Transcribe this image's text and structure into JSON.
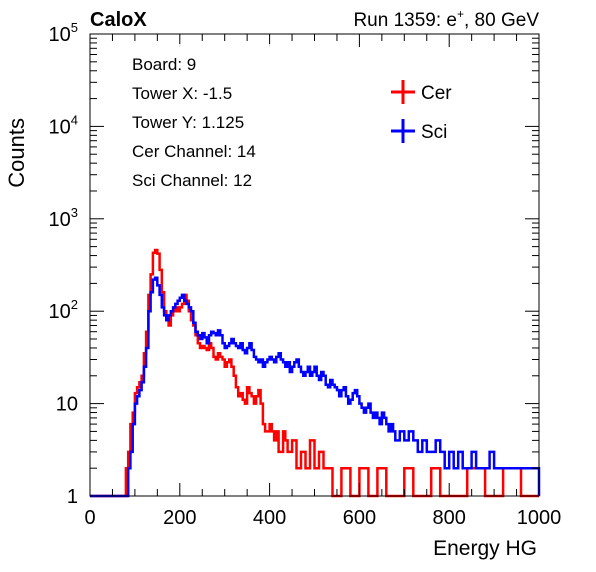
{
  "chart_data": {
    "type": "line",
    "experiment_label": "CaloX",
    "run_label": "Run 1359: e",
    "run_label_sup": "+",
    "run_label_tail": ", 80 GeV",
    "xlabel": "Energy HG",
    "ylabel": "Counts",
    "xlim": [
      0,
      1000
    ],
    "ylim": [
      1,
      100000
    ],
    "y_scale": "log",
    "x_ticks": [
      0,
      200,
      400,
      600,
      800,
      1000
    ],
    "y_ticks": [
      {
        "base": "1",
        "exp": ""
      },
      {
        "base": "10",
        "exp": ""
      },
      {
        "base": "10",
        "exp": "2"
      },
      {
        "base": "10",
        "exp": "3"
      },
      {
        "base": "10",
        "exp": "4"
      },
      {
        "base": "10",
        "exp": "5"
      }
    ],
    "info_lines": [
      "Board: 9",
      "Tower X: -1.5",
      "Tower Y: 1.125",
      "Cer Channel: 14",
      "Sci Channel: 12"
    ],
    "legend_position": "top-right",
    "series": [
      {
        "name": "Cer",
        "color": "#ff0000",
        "points": [
          [
            0,
            1
          ],
          [
            20,
            1
          ],
          [
            40,
            1
          ],
          [
            50,
            1
          ],
          [
            55,
            1
          ],
          [
            60,
            1
          ],
          [
            65,
            1
          ],
          [
            70,
            1
          ],
          [
            75,
            1
          ],
          [
            80,
            2
          ],
          [
            85,
            3
          ],
          [
            90,
            6
          ],
          [
            95,
            8
          ],
          [
            100,
            13
          ],
          [
            105,
            15
          ],
          [
            110,
            17
          ],
          [
            115,
            20
          ],
          [
            120,
            35
          ],
          [
            125,
            60
          ],
          [
            130,
            150
          ],
          [
            135,
            250
          ],
          [
            140,
            430
          ],
          [
            145,
            460
          ],
          [
            150,
            420
          ],
          [
            155,
            280
          ],
          [
            160,
            160
          ],
          [
            165,
            100
          ],
          [
            170,
            80
          ],
          [
            175,
            70
          ],
          [
            180,
            90
          ],
          [
            185,
            100
          ],
          [
            190,
            110
          ],
          [
            195,
            100
          ],
          [
            200,
            110
          ],
          [
            205,
            120
          ],
          [
            210,
            150
          ],
          [
            215,
            130
          ],
          [
            220,
            100
          ],
          [
            225,
            80
          ],
          [
            230,
            70
          ],
          [
            235,
            55
          ],
          [
            240,
            45
          ],
          [
            245,
            40
          ],
          [
            250,
            42
          ],
          [
            255,
            40
          ],
          [
            260,
            38
          ],
          [
            265,
            45
          ],
          [
            270,
            40
          ],
          [
            275,
            32
          ],
          [
            280,
            30
          ],
          [
            285,
            35
          ],
          [
            290,
            32
          ],
          [
            295,
            30
          ],
          [
            300,
            25
          ],
          [
            305,
            28
          ],
          [
            310,
            30
          ],
          [
            315,
            25
          ],
          [
            320,
            20
          ],
          [
            325,
            15
          ],
          [
            330,
            12
          ],
          [
            335,
            13
          ],
          [
            340,
            11
          ],
          [
            345,
            10
          ],
          [
            350,
            15
          ],
          [
            355,
            13
          ],
          [
            360,
            12
          ],
          [
            365,
            10
          ],
          [
            370,
            12
          ],
          [
            375,
            14
          ],
          [
            380,
            10
          ],
          [
            385,
            6
          ],
          [
            390,
            5
          ],
          [
            395,
            5
          ],
          [
            400,
            6
          ],
          [
            405,
            5
          ],
          [
            410,
            4
          ],
          [
            415,
            5
          ],
          [
            420,
            3
          ],
          [
            425,
            3
          ],
          [
            430,
            5
          ],
          [
            435,
            4
          ],
          [
            440,
            3
          ],
          [
            450,
            4
          ],
          [
            460,
            2
          ],
          [
            470,
            3
          ],
          [
            480,
            2
          ],
          [
            490,
            4
          ],
          [
            500,
            2
          ],
          [
            510,
            3
          ],
          [
            520,
            2
          ],
          [
            530,
            2
          ],
          [
            540,
            1
          ],
          [
            560,
            2
          ],
          [
            580,
            1
          ],
          [
            600,
            2
          ],
          [
            620,
            1
          ],
          [
            640,
            2
          ],
          [
            660,
            1
          ],
          [
            680,
            1
          ],
          [
            700,
            2
          ],
          [
            720,
            1
          ],
          [
            740,
            1
          ],
          [
            760,
            2
          ],
          [
            780,
            1
          ],
          [
            800,
            1
          ],
          [
            840,
            2
          ],
          [
            880,
            1
          ],
          [
            920,
            2
          ],
          [
            960,
            1
          ],
          [
            1000,
            1
          ]
        ]
      },
      {
        "name": "Sci",
        "color": "#0000ff",
        "points": [
          [
            0,
            1
          ],
          [
            40,
            1
          ],
          [
            50,
            1
          ],
          [
            60,
            1
          ],
          [
            70,
            1
          ],
          [
            80,
            1
          ],
          [
            85,
            2
          ],
          [
            90,
            3
          ],
          [
            95,
            6
          ],
          [
            100,
            10
          ],
          [
            105,
            12
          ],
          [
            110,
            14
          ],
          [
            115,
            17
          ],
          [
            120,
            25
          ],
          [
            125,
            40
          ],
          [
            130,
            100
          ],
          [
            135,
            160
          ],
          [
            140,
            220
          ],
          [
            145,
            230
          ],
          [
            150,
            190
          ],
          [
            155,
            150
          ],
          [
            160,
            110
          ],
          [
            165,
            90
          ],
          [
            170,
            80
          ],
          [
            175,
            90
          ],
          [
            180,
            100
          ],
          [
            185,
            110
          ],
          [
            190,
            120
          ],
          [
            195,
            130
          ],
          [
            200,
            140
          ],
          [
            205,
            150
          ],
          [
            210,
            130
          ],
          [
            215,
            120
          ],
          [
            220,
            110
          ],
          [
            225,
            100
          ],
          [
            230,
            75
          ],
          [
            235,
            60
          ],
          [
            240,
            55
          ],
          [
            245,
            50
          ],
          [
            250,
            58
          ],
          [
            255,
            52
          ],
          [
            260,
            45
          ],
          [
            265,
            55
          ],
          [
            270,
            60
          ],
          [
            275,
            58
          ],
          [
            280,
            55
          ],
          [
            285,
            62
          ],
          [
            290,
            55
          ],
          [
            295,
            45
          ],
          [
            300,
            40
          ],
          [
            305,
            42
          ],
          [
            310,
            45
          ],
          [
            315,
            50
          ],
          [
            320,
            45
          ],
          [
            325,
            42
          ],
          [
            330,
            40
          ],
          [
            335,
            45
          ],
          [
            340,
            38
          ],
          [
            345,
            35
          ],
          [
            350,
            40
          ],
          [
            355,
            45
          ],
          [
            360,
            38
          ],
          [
            365,
            32
          ],
          [
            370,
            30
          ],
          [
            375,
            28
          ],
          [
            380,
            30
          ],
          [
            385,
            25
          ],
          [
            390,
            28
          ],
          [
            395,
            30
          ],
          [
            400,
            32
          ],
          [
            405,
            30
          ],
          [
            410,
            28
          ],
          [
            415,
            32
          ],
          [
            420,
            35
          ],
          [
            425,
            30
          ],
          [
            430,
            28
          ],
          [
            435,
            25
          ],
          [
            440,
            28
          ],
          [
            445,
            22
          ],
          [
            450,
            25
          ],
          [
            455,
            28
          ],
          [
            460,
            30
          ],
          [
            465,
            25
          ],
          [
            470,
            22
          ],
          [
            475,
            20
          ],
          [
            480,
            22
          ],
          [
            485,
            25
          ],
          [
            490,
            20
          ],
          [
            495,
            22
          ],
          [
            500,
            25
          ],
          [
            505,
            20
          ],
          [
            510,
            18
          ],
          [
            515,
            22
          ],
          [
            520,
            20
          ],
          [
            525,
            16
          ],
          [
            530,
            15
          ],
          [
            535,
            18
          ],
          [
            540,
            16
          ],
          [
            545,
            15
          ],
          [
            550,
            14
          ],
          [
            555,
            12
          ],
          [
            560,
            14
          ],
          [
            565,
            15
          ],
          [
            570,
            12
          ],
          [
            575,
            10
          ],
          [
            580,
            11
          ],
          [
            585,
            13
          ],
          [
            590,
            14
          ],
          [
            595,
            12
          ],
          [
            600,
            10
          ],
          [
            605,
            9
          ],
          [
            610,
            8
          ],
          [
            615,
            9
          ],
          [
            620,
            10
          ],
          [
            625,
            8
          ],
          [
            630,
            7
          ],
          [
            635,
            8
          ],
          [
            640,
            7
          ],
          [
            645,
            6
          ],
          [
            650,
            8
          ],
          [
            655,
            7
          ],
          [
            660,
            6
          ],
          [
            665,
            5
          ],
          [
            670,
            6
          ],
          [
            675,
            5
          ],
          [
            680,
            4
          ],
          [
            690,
            5
          ],
          [
            700,
            4
          ],
          [
            710,
            5
          ],
          [
            720,
            4
          ],
          [
            730,
            3
          ],
          [
            740,
            4
          ],
          [
            750,
            3
          ],
          [
            760,
            3
          ],
          [
            770,
            4
          ],
          [
            780,
            3
          ],
          [
            790,
            2
          ],
          [
            800,
            3
          ],
          [
            810,
            2
          ],
          [
            820,
            3
          ],
          [
            830,
            2
          ],
          [
            840,
            2
          ],
          [
            850,
            3
          ],
          [
            860,
            2
          ],
          [
            870,
            2
          ],
          [
            880,
            2
          ],
          [
            890,
            3
          ],
          [
            900,
            2
          ],
          [
            910,
            2
          ],
          [
            920,
            2
          ],
          [
            930,
            2
          ],
          [
            940,
            2
          ],
          [
            950,
            2
          ],
          [
            960,
            2
          ],
          [
            980,
            2
          ],
          [
            1000,
            1
          ]
        ]
      }
    ]
  }
}
